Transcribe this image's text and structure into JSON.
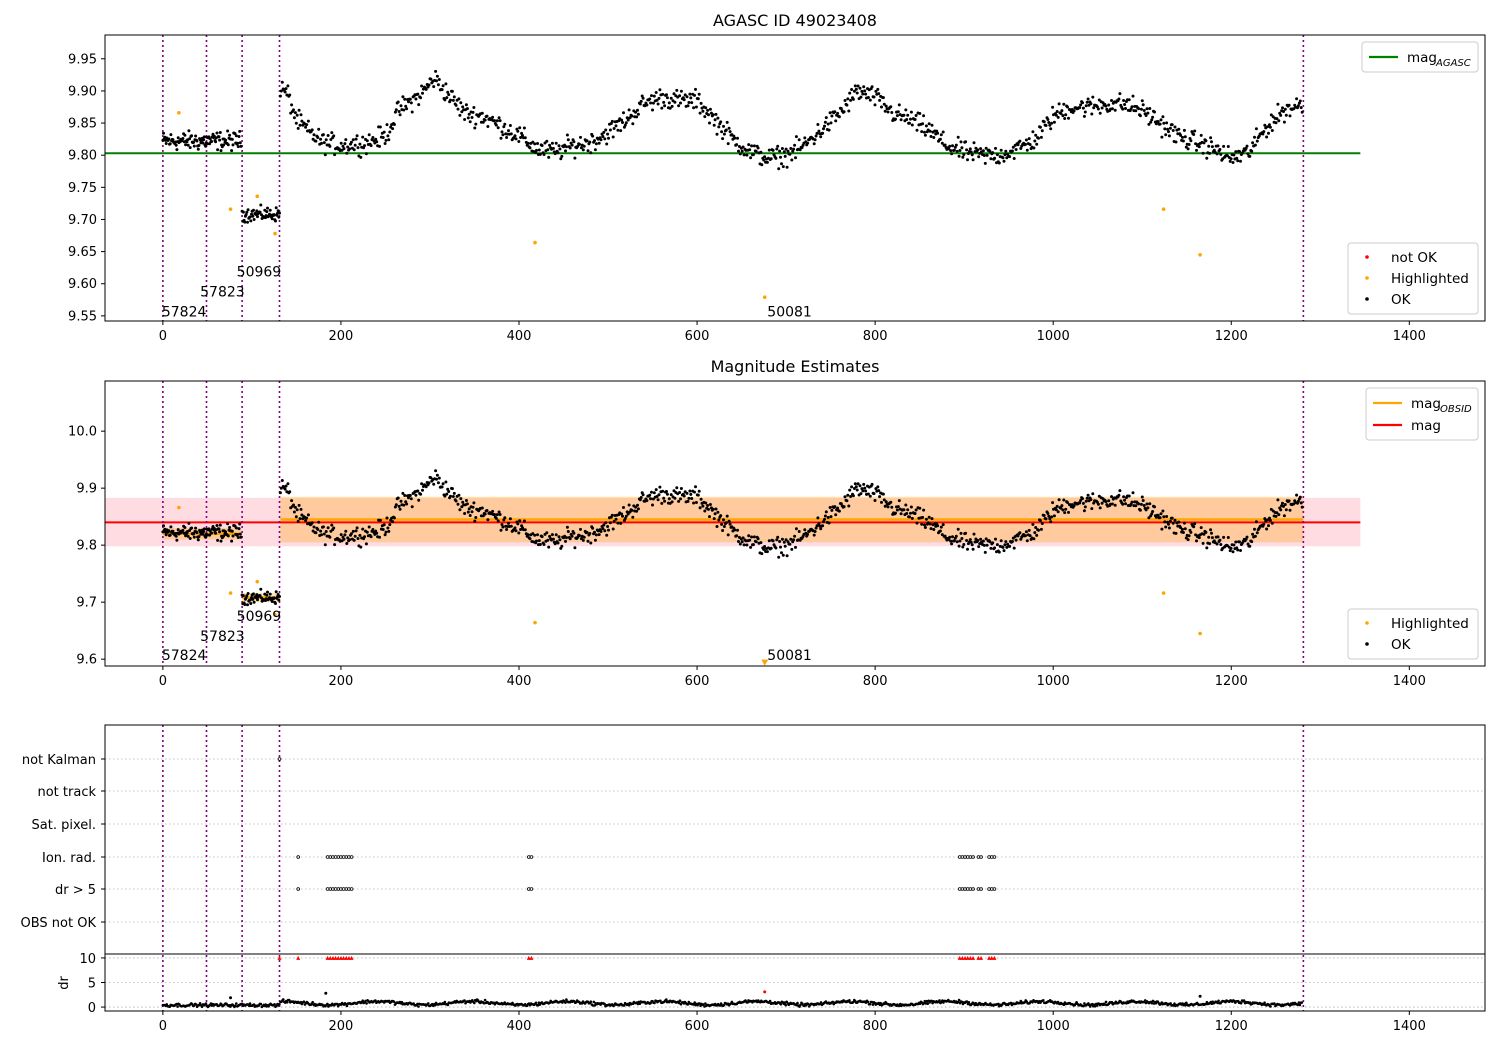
{
  "chart_data": [
    {
      "type": "scatter",
      "title": "AGASC ID 49023408",
      "xlabel": "",
      "ylabel": "",
      "xlim": [
        -65,
        1485
      ],
      "ylim": [
        9.542,
        9.987
      ],
      "x_ticks": [
        0,
        200,
        400,
        600,
        800,
        1000,
        1200,
        1400
      ],
      "y_ticks": [
        9.55,
        9.6,
        9.65,
        9.7,
        9.75,
        9.8,
        9.85,
        9.9,
        9.95
      ],
      "y_tick_labels": [
        "9.55",
        "9.60",
        "9.65",
        "9.70",
        "9.75",
        "9.80",
        "9.85",
        "9.90",
        "9.95"
      ],
      "lines": [
        {
          "name": "mag_AGASC",
          "legend_main": "mag",
          "legend_sub": "AGASC",
          "y": 9.803,
          "x_range": [
            -65,
            1345
          ],
          "color": "#008000"
        }
      ],
      "legend_lines_position": "top-right",
      "legend_points_position": "bottom-right",
      "legend_points": [
        {
          "label": "not OK",
          "color": "#ff0000"
        },
        {
          "label": "Highlighted",
          "color": "#ffa500"
        },
        {
          "label": "OK",
          "color": "#000000"
        }
      ],
      "vertical_lines_x": [
        0,
        49,
        89,
        131,
        1281
      ],
      "annotations": [
        {
          "text": "57824",
          "x": 0,
          "y": 9.557
        },
        {
          "text": "57823",
          "x": 43,
          "y": 9.588
        },
        {
          "text": "50969",
          "x": 84,
          "y": 9.619
        },
        {
          "text": "50081",
          "x": 680,
          "y": 9.557
        }
      ],
      "highlighted_points": [
        [
          18,
          9.866
        ],
        [
          76,
          9.716
        ],
        [
          106,
          9.736
        ],
        [
          126,
          9.678
        ],
        [
          418,
          9.664
        ],
        [
          676,
          9.579
        ],
        [
          1124,
          9.716
        ],
        [
          1165,
          9.645
        ]
      ],
      "ok_segments": [
        {
          "x": [
            0,
            88
          ],
          "y_mean": 9.822,
          "scatter": 0.012,
          "trend": 0.0
        },
        {
          "x": [
            89,
            131
          ],
          "y_mean": 9.708,
          "scatter": 0.009,
          "trend": 0.0
        }
      ],
      "ok_curve": {
        "x_range": [
          132,
          1280
        ],
        "points": [
          [
            132,
            9.905
          ],
          [
            140,
            9.895
          ],
          [
            150,
            9.855
          ],
          [
            165,
            9.835
          ],
          [
            180,
            9.82
          ],
          [
            200,
            9.815
          ],
          [
            230,
            9.82
          ],
          [
            250,
            9.83
          ],
          [
            265,
            9.87
          ],
          [
            290,
            9.895
          ],
          [
            305,
            9.92
          ],
          [
            320,
            9.895
          ],
          [
            340,
            9.865
          ],
          [
            360,
            9.86
          ],
          [
            380,
            9.845
          ],
          [
            400,
            9.83
          ],
          [
            420,
            9.81
          ],
          [
            440,
            9.805
          ],
          [
            460,
            9.815
          ],
          [
            480,
            9.82
          ],
          [
            500,
            9.835
          ],
          [
            520,
            9.855
          ],
          [
            540,
            9.88
          ],
          [
            560,
            9.89
          ],
          [
            580,
            9.885
          ],
          [
            600,
            9.885
          ],
          [
            620,
            9.855
          ],
          [
            640,
            9.825
          ],
          [
            660,
            9.805
          ],
          [
            680,
            9.795
          ],
          [
            700,
            9.8
          ],
          [
            720,
            9.815
          ],
          [
            740,
            9.84
          ],
          [
            760,
            9.865
          ],
          [
            780,
            9.9
          ],
          [
            800,
            9.89
          ],
          [
            820,
            9.865
          ],
          [
            840,
            9.855
          ],
          [
            860,
            9.84
          ],
          [
            880,
            9.815
          ],
          [
            900,
            9.805
          ],
          [
            920,
            9.8
          ],
          [
            940,
            9.8
          ],
          [
            960,
            9.81
          ],
          [
            980,
            9.825
          ],
          [
            1000,
            9.86
          ],
          [
            1020,
            9.875
          ],
          [
            1040,
            9.875
          ],
          [
            1060,
            9.88
          ],
          [
            1080,
            9.88
          ],
          [
            1100,
            9.87
          ],
          [
            1120,
            9.85
          ],
          [
            1140,
            9.83
          ],
          [
            1160,
            9.82
          ],
          [
            1180,
            9.81
          ],
          [
            1200,
            9.795
          ],
          [
            1220,
            9.805
          ],
          [
            1240,
            9.845
          ],
          [
            1260,
            9.87
          ],
          [
            1280,
            9.88
          ]
        ],
        "scatter": 0.013
      }
    },
    {
      "type": "scatter",
      "title": "Magnitude Estimates",
      "xlabel": "",
      "ylabel": "",
      "xlim": [
        -65,
        1485
      ],
      "ylim": [
        9.588,
        10.088
      ],
      "x_ticks": [
        0,
        200,
        400,
        600,
        800,
        1000,
        1200,
        1400
      ],
      "y_ticks": [
        9.6,
        9.7,
        9.8,
        9.9,
        10.0
      ],
      "y_tick_labels": [
        "9.6",
        "9.7",
        "9.8",
        "9.9",
        "10.0"
      ],
      "lines": [
        {
          "name": "mag_OBSID",
          "legend_main": "mag",
          "legend_sub": "OBSID",
          "color": "#ffa500"
        },
        {
          "name": "mag",
          "legend_main": "mag",
          "legend_sub": "",
          "y": 9.84,
          "x_range": [
            -65,
            1345
          ],
          "color": "#ff0000"
        }
      ],
      "mag_band": {
        "y": [
          9.798,
          9.883
        ],
        "x_range": [
          -65,
          1345
        ],
        "color": "#ffc0cb"
      },
      "obsid_segments": [
        {
          "x": [
            0,
            88
          ],
          "mag": 9.82,
          "band": [
            9.81,
            9.83
          ]
        },
        {
          "x": [
            89,
            131
          ],
          "mag": 9.708,
          "band": [
            9.7,
            9.716
          ]
        },
        {
          "x": [
            132,
            1281
          ],
          "mag": 9.845,
          "band": [
            9.805,
            9.885
          ]
        }
      ],
      "legend_lines_position": "top-right",
      "legend_points_position": "bottom-right",
      "legend_points": [
        {
          "label": "Highlighted",
          "color": "#ffa500"
        },
        {
          "label": "OK",
          "color": "#000000"
        }
      ],
      "vertical_lines_x": [
        0,
        49,
        89,
        131,
        1281
      ],
      "annotations": [
        {
          "text": "57824",
          "x": 0,
          "y": 9.607
        },
        {
          "text": "57823",
          "x": 43,
          "y": 9.641
        },
        {
          "text": "50969",
          "x": 84,
          "y": 9.676
        },
        {
          "text": "50081",
          "x": 680,
          "y": 9.607
        }
      ],
      "highlighted_points": [
        [
          18,
          9.866
        ],
        [
          76,
          9.716
        ],
        [
          106,
          9.736
        ],
        [
          126,
          9.678
        ],
        [
          418,
          9.664
        ],
        [
          1124,
          9.716
        ],
        [
          1165,
          9.645
        ]
      ],
      "below_range_marker": {
        "x": 676,
        "y": 9.594
      }
    },
    {
      "type": "scatter",
      "title": "",
      "xlim": [
        -65,
        1485
      ],
      "x_ticks": [
        0,
        200,
        400,
        600,
        800,
        1000,
        1200,
        1400
      ],
      "flag_rows": [
        "not Kalman",
        "not track",
        "Sat. pixel.",
        "Ion. rad.",
        "dr > 5",
        "OBS not OK"
      ],
      "flag_points": {
        "not Kalman": [
          131
        ],
        "Ion. rad.": [
          152,
          185,
          188,
          191,
          194,
          197,
          200,
          203,
          206,
          209,
          212,
          411,
          414,
          895,
          898,
          901,
          904,
          907,
          910,
          916,
          919,
          928,
          931,
          934
        ],
        "dr > 5": [
          152,
          185,
          188,
          191,
          194,
          197,
          200,
          203,
          206,
          209,
          212,
          411,
          414,
          895,
          898,
          901,
          904,
          907,
          910,
          916,
          919,
          928,
          931,
          934
        ]
      },
      "dr_panel": {
        "ylabel": "dr",
        "ylim": [
          -0.8,
          10.8
        ],
        "y_ticks": [
          0,
          5,
          10
        ],
        "y_tick_labels": [
          "0",
          "5",
          "10"
        ],
        "clipped_value": 10,
        "clipped_x": [
          131,
          152,
          185,
          188,
          191,
          194,
          197,
          200,
          203,
          206,
          209,
          212,
          411,
          414,
          895,
          898,
          901,
          904,
          907,
          910,
          916,
          919,
          928,
          931,
          934
        ],
        "outliers": [
          [
            76,
            1.9
          ],
          [
            183,
            2.8
          ],
          [
            676,
            3.1
          ],
          [
            1165,
            2.2
          ]
        ],
        "typical_range": [
          0.2,
          2.3
        ]
      },
      "vertical_lines_x": [
        0,
        49,
        89,
        131,
        1281
      ]
    }
  ]
}
